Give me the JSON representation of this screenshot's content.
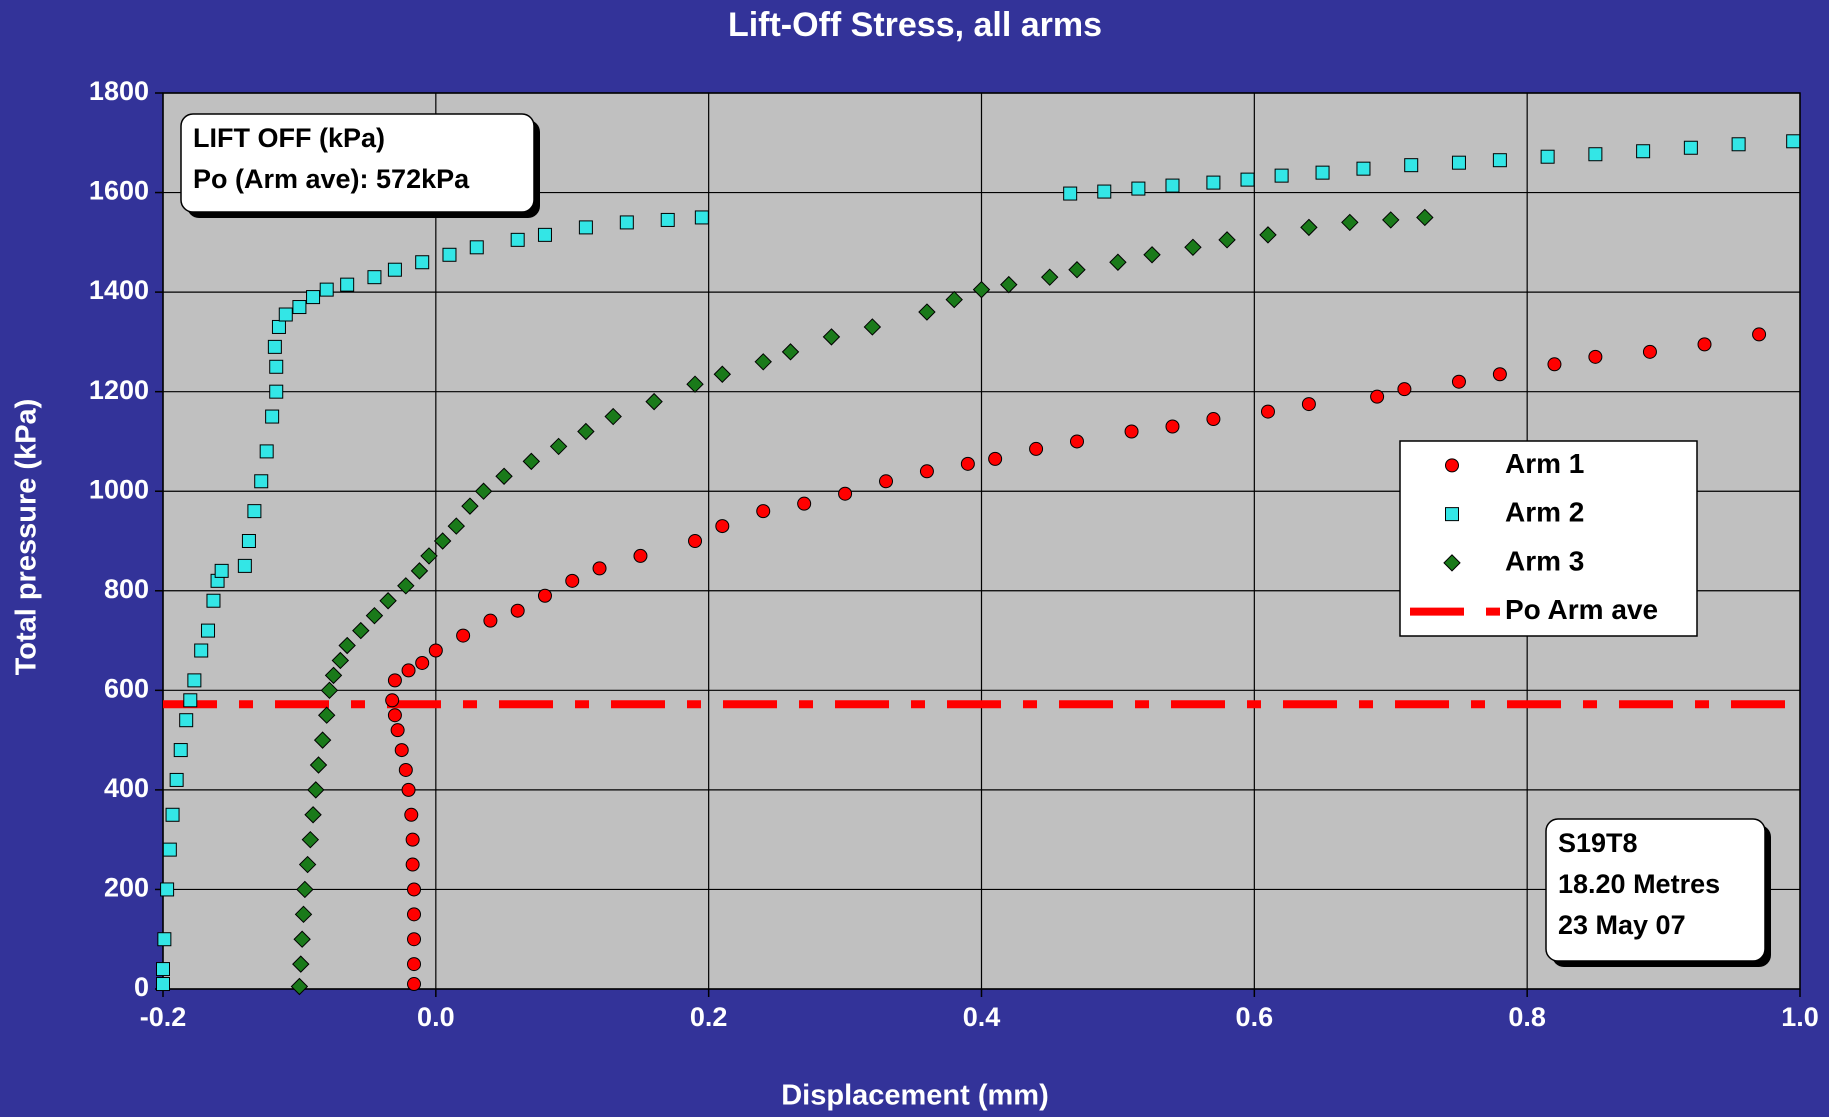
{
  "chart_data": {
    "type": "scatter",
    "title": "Lift-Off Stress, all arms",
    "x_label": "Displacement (mm)",
    "y_label": "Total pressure (kPa)",
    "xlim": [
      -0.2,
      1.0
    ],
    "xticks": [
      -0.2,
      {
        "value": 0,
        "label": "0.0"
      },
      0.2,
      0.4,
      0.6,
      0.8,
      {
        "value": 1,
        "label": "1.0"
      }
    ],
    "ylim": [
      0,
      1800
    ],
    "yticks": [
      0,
      200,
      400,
      600,
      800,
      1000,
      1200,
      1400,
      1600,
      1800
    ],
    "grid": true,
    "legend": "right",
    "series": [
      {
        "name": "Arm 1",
        "color": "#ff0000",
        "marker": "circle",
        "x": [
          -0.016,
          -0.016,
          -0.016,
          -0.016,
          -0.016,
          -0.017,
          -0.017,
          -0.018,
          -0.02,
          -0.022,
          -0.025,
          -0.028,
          -0.03,
          -0.032,
          -0.03,
          -0.02,
          -0.01,
          0.0,
          0.02,
          0.04,
          0.06,
          0.08,
          0.1,
          0.12,
          0.15,
          0.19,
          0.21,
          0.24,
          0.27,
          0.3,
          0.33,
          0.36,
          0.39,
          0.41,
          0.44,
          0.47,
          0.51,
          0.54,
          0.57,
          0.61,
          0.64,
          0.69,
          0.71,
          0.75,
          0.78,
          0.82,
          0.85,
          0.89,
          0.93,
          0.97
        ],
        "values": [
          10,
          50,
          100,
          150,
          200,
          250,
          300,
          350,
          400,
          440,
          480,
          520,
          550,
          580,
          620,
          640,
          655,
          680,
          710,
          740,
          760,
          790,
          820,
          845,
          870,
          900,
          930,
          960,
          975,
          995,
          1020,
          1040,
          1055,
          1065,
          1085,
          1100,
          1120,
          1130,
          1145,
          1160,
          1175,
          1190,
          1205,
          1220,
          1235,
          1255,
          1270,
          1280,
          1295,
          1315
        ]
      },
      {
        "name": "Arm 2",
        "color": "#33e6e6",
        "marker": "square",
        "x": [
          -0.2,
          -0.2,
          -0.199,
          -0.197,
          -0.195,
          -0.193,
          -0.19,
          -0.187,
          -0.183,
          -0.18,
          -0.177,
          -0.172,
          -0.167,
          -0.163,
          -0.16,
          -0.157,
          -0.14,
          -0.137,
          -0.133,
          -0.128,
          -0.124,
          -0.12,
          -0.117,
          -0.117,
          -0.118,
          -0.115,
          -0.11,
          -0.1,
          -0.09,
          -0.08,
          -0.065,
          -0.045,
          -0.03,
          -0.01,
          0.01,
          0.03,
          0.06,
          0.08,
          0.11,
          0.14,
          0.17,
          0.195,
          0.465,
          0.49,
          0.515,
          0.54,
          0.57,
          0.595,
          0.62,
          0.65,
          0.68,
          0.715,
          0.75,
          0.78,
          0.815,
          0.85,
          0.885,
          0.92,
          0.955,
          0.995
        ],
        "values": [
          10,
          40,
          100,
          200,
          280,
          350,
          420,
          480,
          540,
          580,
          620,
          680,
          720,
          780,
          820,
          840,
          850,
          900,
          960,
          1020,
          1080,
          1150,
          1200,
          1250,
          1290,
          1330,
          1355,
          1370,
          1390,
          1405,
          1415,
          1430,
          1445,
          1460,
          1475,
          1490,
          1505,
          1515,
          1530,
          1540,
          1545,
          1550,
          1598,
          1602,
          1608,
          1614,
          1620,
          1626,
          1634,
          1640,
          1648,
          1655,
          1660,
          1665,
          1672,
          1677,
          1683,
          1690,
          1697,
          1703
        ]
      },
      {
        "name": "Arm 3",
        "color": "#1a7a1a",
        "marker": "diamond",
        "x": [
          -0.1,
          -0.099,
          -0.098,
          -0.097,
          -0.096,
          -0.094,
          -0.092,
          -0.09,
          -0.088,
          -0.086,
          -0.083,
          -0.08,
          -0.078,
          -0.075,
          -0.07,
          -0.065,
          -0.055,
          -0.045,
          -0.035,
          -0.022,
          -0.012,
          -0.005,
          0.005,
          0.015,
          0.025,
          0.035,
          0.05,
          0.07,
          0.09,
          0.11,
          0.13,
          0.16,
          0.19,
          0.21,
          0.24,
          0.26,
          0.29,
          0.32,
          0.36,
          0.38,
          0.4,
          0.42,
          0.45,
          0.47,
          0.5,
          0.525,
          0.555,
          0.58,
          0.61,
          0.64,
          0.67,
          0.7,
          0.725
        ],
        "values": [
          5,
          50,
          100,
          150,
          200,
          250,
          300,
          350,
          400,
          450,
          500,
          550,
          600,
          630,
          660,
          690,
          720,
          750,
          780,
          810,
          840,
          870,
          900,
          930,
          970,
          1000,
          1030,
          1060,
          1090,
          1120,
          1150,
          1180,
          1215,
          1235,
          1260,
          1280,
          1310,
          1330,
          1360,
          1385,
          1405,
          1415,
          1430,
          1445,
          1460,
          1475,
          1490,
          1505,
          1515,
          1530,
          1540,
          1545,
          1550
        ]
      }
    ],
    "reference_lines": [
      {
        "name": "Po Arm ave",
        "value": 572,
        "color": "#ff0000"
      }
    ],
    "annotations": [
      {
        "lines": [
          "LIFT OFF (kPa)",
          "Po (Arm ave): 572kPa"
        ]
      },
      {
        "lines": [
          "S19T8",
          "18.20 Metres",
          "23 May 07"
        ]
      }
    ]
  }
}
